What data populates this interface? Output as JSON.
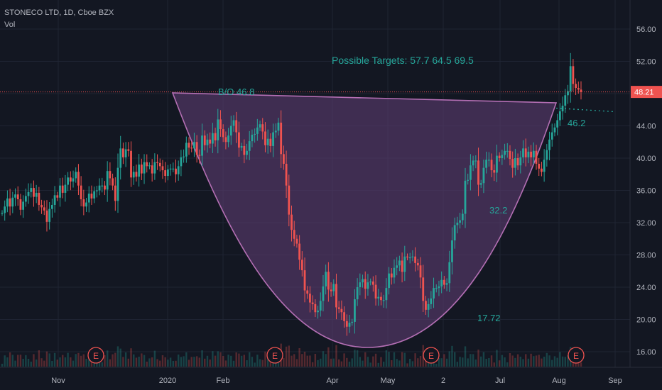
{
  "header": {
    "symbol_line": "STONECO LTD, 1D, Cboe BZX",
    "indicator": "Vol"
  },
  "price_tag": "48.21",
  "annotations": {
    "targets": "Possible Targets: 57.7  64.5  69.5",
    "breakout": "B/O  46.8",
    "stop": "46.2",
    "mid_level": "32.2",
    "bottom_level": "17.72"
  },
  "earnings_marker": "E",
  "colors": {
    "background": "#131722",
    "up": "#26a69a",
    "down": "#ef5350",
    "cup_fill": "#5b3b6e",
    "cup_stroke": "#b46fb4",
    "price_line": "#ef5350",
    "text": "#b2b5be",
    "annotation": "#26a69a"
  },
  "chart_data": {
    "type": "candlestick",
    "y_axis": {
      "ticks": [
        16,
        20,
        24,
        28,
        32,
        36,
        40,
        44,
        48,
        52,
        56
      ],
      "tick_labels": [
        "16.00",
        "20.00",
        "24.00",
        "28.00",
        "32.00",
        "36.00",
        "40.00",
        "44.00",
        "48.00",
        "52.00",
        "56.00"
      ],
      "range": [
        15,
        57
      ]
    },
    "x_axis": {
      "labels": [
        "Nov",
        "2020",
        "Feb",
        "Apr",
        "May",
        "2",
        "Jul",
        "Aug",
        "Sep"
      ]
    },
    "last_price": 48.21,
    "breakout_level": 46.8,
    "cup_shape": {
      "start_price": 47.8,
      "end_price": 46.8,
      "bottom_price": 16.7,
      "label": "cup and handle"
    },
    "handle_support": 46.2,
    "targets": [
      57.7,
      64.5,
      69.5
    ],
    "earnings_events": 4,
    "closes": [
      33.2,
      34.0,
      35.0,
      34.0,
      35.1,
      35.5,
      34.9,
      33.6,
      34.6,
      35.3,
      35.8,
      36.3,
      35.2,
      35.7,
      34.2,
      33.9,
      33.5,
      32.1,
      33.7,
      34.2,
      35.4,
      35.1,
      36.6,
      35.7,
      36.7,
      37.6,
      37.1,
      37.5,
      38.3,
      36.6,
      34.9,
      34.0,
      34.5,
      35.6,
      35.0,
      35.9,
      36.0,
      36.6,
      36.6,
      36.1,
      38.4,
      37.5,
      36.6,
      34.7,
      38.8,
      41.2,
      40.1,
      41.1,
      40.9,
      37.6,
      38.3,
      37.7,
      39.2,
      38.1,
      39.5,
      39.0,
      39.1,
      38.1,
      39.5,
      39.4,
      39.0,
      38.5,
      37.8,
      38.6,
      38.7,
      38.7,
      38.0,
      39.0,
      40.1,
      40.2,
      41.9,
      41.3,
      41.2,
      42.0,
      40.4,
      40.3,
      42.8,
      41.6,
      42.3,
      41.8,
      43.1,
      42.2,
      44.8,
      43.6,
      42.6,
      42.0,
      42.8,
      44.0,
      44.7,
      43.2,
      41.3,
      41.5,
      40.4,
      40.9,
      42.1,
      42.9,
      43.0,
      43.8,
      44.2,
      43.3,
      41.6,
      42.4,
      41.5,
      43.2,
      43.4,
      44.4,
      40.5,
      39.3,
      36.6,
      33.0,
      31.1,
      30.0,
      29.4,
      27.4,
      26.1,
      23.6,
      23.2,
      22.1,
      21.9,
      20.9,
      21.1,
      22.3,
      24.1,
      25.9,
      23.7,
      23.5,
      24.4,
      21.5,
      21.3,
      20.9,
      19.8,
      19.1,
      19.6,
      19.7,
      22.5,
      24.0,
      24.6,
      25.0,
      23.8,
      24.6,
      24.7,
      24.3,
      22.6,
      22.8,
      22.4,
      22.4,
      23.9,
      25.7,
      25.2,
      26.4,
      26.7,
      27.3,
      25.9,
      27.8,
      27.7,
      27.7,
      27.8,
      27.0,
      26.7,
      25.2,
      22.3,
      21.2,
      21.9,
      22.6,
      23.9,
      23.9,
      24.1,
      24.9,
      24.3,
      24.5,
      27.1,
      29.8,
      31.7,
      32.0,
      32.3,
      33.1,
      37.2,
      37.3,
      39.1,
      39.7,
      39.7,
      36.7,
      36.9,
      38.8,
      39.8,
      39.8,
      38.5,
      38.2,
      40.3,
      40.0,
      40.4,
      40.9,
      40.9,
      39.9,
      38.8,
      40.0,
      39.1,
      40.1,
      41.2,
      40.1,
      40.8,
      40.1,
      40.9,
      39.3,
      38.7,
      38.3,
      39.8,
      41.0,
      42.3,
      43.2,
      43.8,
      44.7,
      45.8,
      46.5,
      47.8,
      48.3,
      51.4,
      49.2,
      48.7,
      48.5,
      48.2
    ]
  }
}
